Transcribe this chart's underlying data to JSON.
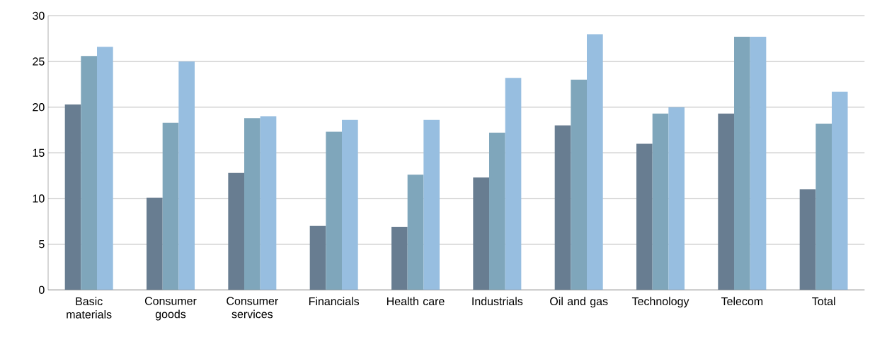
{
  "chart_data": {
    "type": "bar",
    "categories": [
      "Basic materials",
      "Consumer goods",
      "Consumer services",
      "Financials",
      "Health care",
      "Industrials",
      "Oil and gas",
      "Technology",
      "Telecom",
      "Total"
    ],
    "series": [
      {
        "color": "#687d91",
        "values": [
          20.3,
          10.1,
          12.8,
          7.0,
          6.9,
          12.3,
          18.0,
          16.0,
          19.3,
          11.0
        ]
      },
      {
        "color": "#7fa6bb",
        "values": [
          25.6,
          18.3,
          18.8,
          17.3,
          12.6,
          17.2,
          23.0,
          19.3,
          27.7,
          18.2
        ]
      },
      {
        "color": "#97bee0",
        "values": [
          26.6,
          25.0,
          19.0,
          18.6,
          18.6,
          23.2,
          28.0,
          20.0,
          27.7,
          21.7
        ]
      }
    ],
    "ylim": [
      0,
      30
    ],
    "yticks": [
      0,
      5,
      10,
      15,
      20,
      25,
      30
    ],
    "grid": "y"
  }
}
